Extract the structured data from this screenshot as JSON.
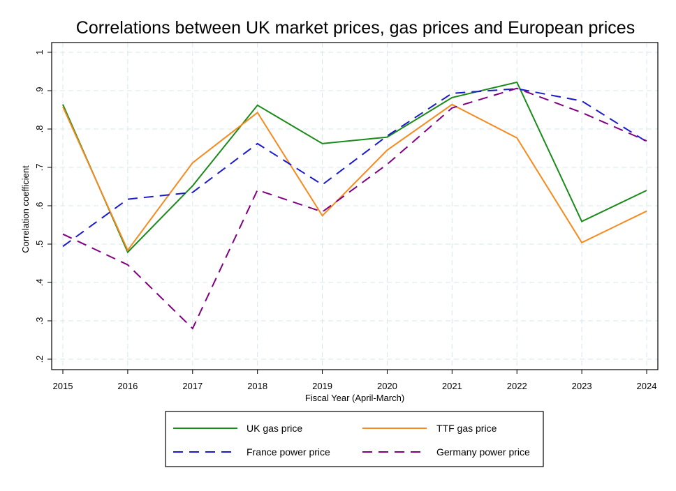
{
  "chart_data": {
    "type": "line",
    "title": "Correlations between UK market prices, gas prices and European prices",
    "xlabel": "Fiscal Year (April-March)",
    "ylabel": "Correlation coefficient",
    "x": [
      2015,
      2016,
      2017,
      2018,
      2019,
      2020,
      2021,
      2022,
      2023,
      2024
    ],
    "x_tick_labels": [
      "2015",
      "2016",
      "2017",
      "2018",
      "2019",
      "2020",
      "2021",
      "2022",
      "2023",
      "2024"
    ],
    "y_ticks": [
      0.2,
      0.3,
      0.4,
      0.5,
      0.6,
      0.7,
      0.8,
      0.9,
      1.0
    ],
    "y_tick_labels": [
      ".2",
      ".3",
      ".4",
      ".5",
      ".6",
      ".7",
      ".8",
      ".9",
      "1"
    ],
    "xlim": [
      2015,
      2024
    ],
    "ylim": [
      0.2,
      1.0
    ],
    "grid": true,
    "legend_position": "bottom",
    "series": [
      {
        "name": "UK gas price",
        "color": "#1a8a1a",
        "dash": "solid",
        "values": [
          0.864,
          0.479,
          0.652,
          0.862,
          0.762,
          0.779,
          0.882,
          0.922,
          0.559,
          0.64
        ]
      },
      {
        "name": "TTF gas price",
        "color": "#f58a1f",
        "dash": "solid",
        "values": [
          0.858,
          0.484,
          0.712,
          0.843,
          0.574,
          0.745,
          0.864,
          0.777,
          0.504,
          0.586
        ]
      },
      {
        "name": "France power price",
        "color": "#1a1acc",
        "dash": "dashed",
        "values": [
          0.494,
          0.617,
          0.635,
          0.762,
          0.655,
          0.782,
          0.893,
          0.905,
          0.873,
          0.767
        ]
      },
      {
        "name": "Germany power price",
        "color": "#800080",
        "dash": "dashed",
        "values": [
          0.526,
          0.446,
          0.28,
          0.641,
          0.584,
          0.708,
          0.855,
          0.906,
          0.843,
          0.769
        ]
      }
    ]
  }
}
